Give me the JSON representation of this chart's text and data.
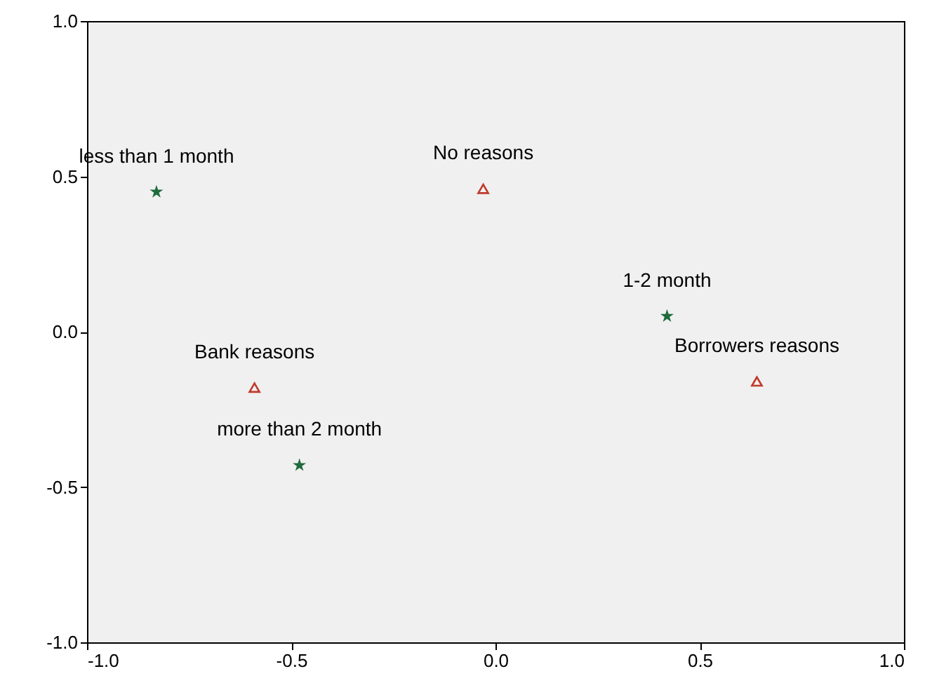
{
  "chart_data": {
    "type": "scatter",
    "xlim": [
      -1,
      1
    ],
    "ylim": [
      -1,
      1
    ],
    "xticks": [
      {
        "value": -1,
        "label": "-1.0"
      },
      {
        "value": -0.5,
        "label": "-0.5"
      },
      {
        "value": 0,
        "label": "0.0"
      },
      {
        "value": 0.5,
        "label": "0.5"
      },
      {
        "value": 1,
        "label": "1.0"
      }
    ],
    "yticks": [
      {
        "value": -1,
        "label": "-1.0"
      },
      {
        "value": -0.5,
        "label": "-0.5"
      },
      {
        "value": 0,
        "label": "0.0"
      },
      {
        "value": 0.5,
        "label": "0.5"
      },
      {
        "value": 1,
        "label": "1.0"
      }
    ],
    "grid": false,
    "series": [
      {
        "color": "#1e6b3c",
        "marker": "star",
        "x": [
          -0.83,
          0.42,
          -0.48
        ],
        "values": [
          0.45,
          0.05,
          -0.43
        ]
      },
      {
        "color": "#c0392b",
        "marker": "triangle",
        "x": [
          -0.03,
          0.64,
          -0.59
        ],
        "values": [
          0.46,
          -0.16,
          -0.18
        ]
      }
    ],
    "annotations": [
      {
        "text": "less than 1 month",
        "x": -0.83,
        "y": 0.45
      },
      {
        "text": "1-2 month",
        "x": 0.42,
        "y": 0.05
      },
      {
        "text": "more than 2 month",
        "x": -0.48,
        "y": -0.43
      },
      {
        "text": "No reasons",
        "x": -0.03,
        "y": 0.46
      },
      {
        "text": "Borrowers reasons",
        "x": 0.64,
        "y": -0.16
      },
      {
        "text": "Bank reasons",
        "x": -0.59,
        "y": -0.18
      }
    ]
  }
}
